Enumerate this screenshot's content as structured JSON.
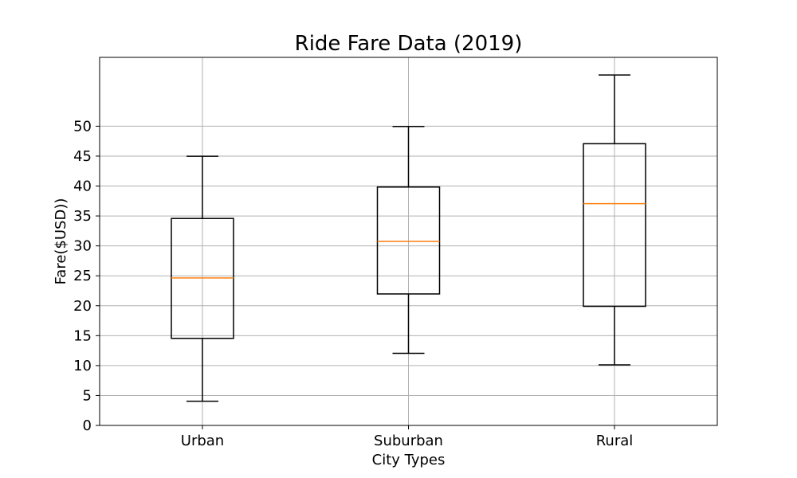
{
  "chart_data": {
    "type": "box",
    "title": "Ride Fare Data (2019)",
    "xlabel": "City Types",
    "ylabel": "Fare($USD))",
    "categories": [
      "Urban",
      "Suburban",
      "Rural"
    ],
    "boxes": [
      {
        "category": "Urban",
        "whislo": 4.05,
        "q1": 14.55,
        "median": 24.64,
        "q3": 34.58,
        "whishi": 44.97
      },
      {
        "category": "Suburban",
        "whislo": 12.05,
        "q1": 21.97,
        "median": 30.75,
        "q3": 39.83,
        "whishi": 49.96
      },
      {
        "category": "Rural",
        "whislo": 10.11,
        "q1": 19.9,
        "median": 37.05,
        "q3": 47.07,
        "whishi": 58.55
      }
    ],
    "yticks": [
      0,
      5,
      10,
      15,
      20,
      25,
      30,
      35,
      40,
      45,
      50
    ],
    "ylim": [
      0,
      61.5
    ],
    "grid": true,
    "colors": {
      "box": "#000000",
      "median": "#ff7f0e",
      "grid": "#b0b0b0"
    }
  }
}
